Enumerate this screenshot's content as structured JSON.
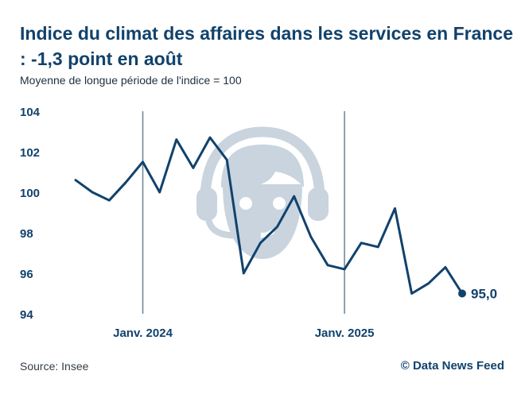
{
  "title": "Indice du climat des affaires dans les services en France : -1,3 point en août",
  "subtitle": "Moyenne de longue période de l'indice = 100",
  "source": "Source: Insee",
  "credit": "© Data News Feed",
  "colors": {
    "line": "#11426c",
    "watermark": "#c9d4de",
    "marker_line": "#6f8193"
  },
  "watermark_icon": "headset-agent-icon",
  "chart_data": {
    "type": "line",
    "title": "Indice du climat des affaires dans les services en France : -1,3 point en août",
    "subtitle": "Moyenne de longue période de l'indice = 100",
    "xlabel": "",
    "ylabel": "",
    "ylim": [
      94,
      104
    ],
    "yticks": [
      104,
      102,
      100,
      98,
      96,
      94
    ],
    "grid": false,
    "x_markers": [
      {
        "date": "2024-01",
        "label": "Janv. 2024"
      },
      {
        "date": "2025-01",
        "label": "Janv. 2025"
      }
    ],
    "x": [
      "2023-09",
      "2023-10",
      "2023-11",
      "2023-12",
      "2024-01",
      "2024-02",
      "2024-03",
      "2024-04",
      "2024-05",
      "2024-06",
      "2024-07",
      "2024-08",
      "2024-09",
      "2024-10",
      "2024-11",
      "2024-12",
      "2025-01",
      "2025-02",
      "2025-03",
      "2025-04",
      "2025-05",
      "2025-06",
      "2025-07",
      "2025-08"
    ],
    "series": [
      {
        "values": [
          100.6,
          100.0,
          99.6,
          100.5,
          101.5,
          100.0,
          102.6,
          101.2,
          102.7,
          101.6,
          96.0,
          97.5,
          98.3,
          99.8,
          97.8,
          96.4,
          96.2,
          97.5,
          97.3,
          99.2,
          95.0,
          95.5,
          96.3,
          95.0
        ]
      }
    ],
    "end_label": "95,0"
  }
}
